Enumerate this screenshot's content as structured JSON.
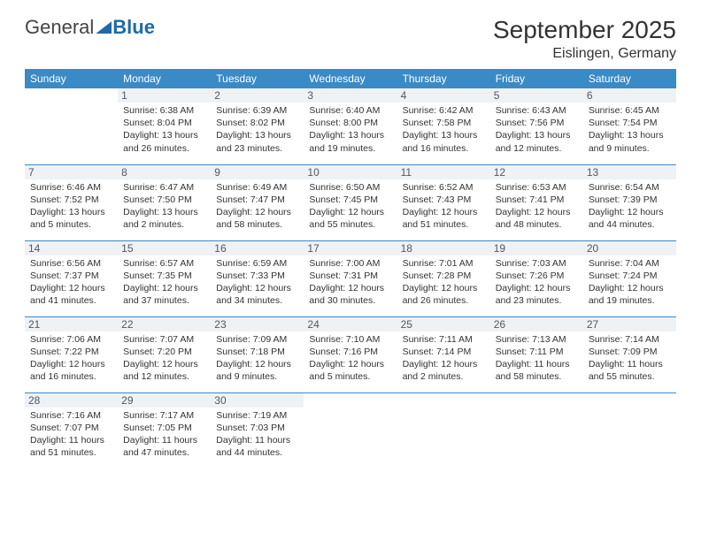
{
  "brand": {
    "part1": "General",
    "part2": "Blue"
  },
  "title": "September 2025",
  "location": "Eislingen, Germany",
  "colors": {
    "header_bg": "#3a8ac6",
    "header_fg": "#ffffff",
    "daynum_bg": "#eef2f5",
    "row_divider": "#3a8ac6",
    "text": "#333333",
    "logo_accent": "#1f6aa5"
  },
  "weekdays": [
    "Sunday",
    "Monday",
    "Tuesday",
    "Wednesday",
    "Thursday",
    "Friday",
    "Saturday"
  ],
  "startWeekday": 1,
  "daysInMonth": 30,
  "days": {
    "1": {
      "sunrise": "6:38 AM",
      "sunset": "8:04 PM",
      "daylight": "13 hours and 26 minutes."
    },
    "2": {
      "sunrise": "6:39 AM",
      "sunset": "8:02 PM",
      "daylight": "13 hours and 23 minutes."
    },
    "3": {
      "sunrise": "6:40 AM",
      "sunset": "8:00 PM",
      "daylight": "13 hours and 19 minutes."
    },
    "4": {
      "sunrise": "6:42 AM",
      "sunset": "7:58 PM",
      "daylight": "13 hours and 16 minutes."
    },
    "5": {
      "sunrise": "6:43 AM",
      "sunset": "7:56 PM",
      "daylight": "13 hours and 12 minutes."
    },
    "6": {
      "sunrise": "6:45 AM",
      "sunset": "7:54 PM",
      "daylight": "13 hours and 9 minutes."
    },
    "7": {
      "sunrise": "6:46 AM",
      "sunset": "7:52 PM",
      "daylight": "13 hours and 5 minutes."
    },
    "8": {
      "sunrise": "6:47 AM",
      "sunset": "7:50 PM",
      "daylight": "13 hours and 2 minutes."
    },
    "9": {
      "sunrise": "6:49 AM",
      "sunset": "7:47 PM",
      "daylight": "12 hours and 58 minutes."
    },
    "10": {
      "sunrise": "6:50 AM",
      "sunset": "7:45 PM",
      "daylight": "12 hours and 55 minutes."
    },
    "11": {
      "sunrise": "6:52 AM",
      "sunset": "7:43 PM",
      "daylight": "12 hours and 51 minutes."
    },
    "12": {
      "sunrise": "6:53 AM",
      "sunset": "7:41 PM",
      "daylight": "12 hours and 48 minutes."
    },
    "13": {
      "sunrise": "6:54 AM",
      "sunset": "7:39 PM",
      "daylight": "12 hours and 44 minutes."
    },
    "14": {
      "sunrise": "6:56 AM",
      "sunset": "7:37 PM",
      "daylight": "12 hours and 41 minutes."
    },
    "15": {
      "sunrise": "6:57 AM",
      "sunset": "7:35 PM",
      "daylight": "12 hours and 37 minutes."
    },
    "16": {
      "sunrise": "6:59 AM",
      "sunset": "7:33 PM",
      "daylight": "12 hours and 34 minutes."
    },
    "17": {
      "sunrise": "7:00 AM",
      "sunset": "7:31 PM",
      "daylight": "12 hours and 30 minutes."
    },
    "18": {
      "sunrise": "7:01 AM",
      "sunset": "7:28 PM",
      "daylight": "12 hours and 26 minutes."
    },
    "19": {
      "sunrise": "7:03 AM",
      "sunset": "7:26 PM",
      "daylight": "12 hours and 23 minutes."
    },
    "20": {
      "sunrise": "7:04 AM",
      "sunset": "7:24 PM",
      "daylight": "12 hours and 19 minutes."
    },
    "21": {
      "sunrise": "7:06 AM",
      "sunset": "7:22 PM",
      "daylight": "12 hours and 16 minutes."
    },
    "22": {
      "sunrise": "7:07 AM",
      "sunset": "7:20 PM",
      "daylight": "12 hours and 12 minutes."
    },
    "23": {
      "sunrise": "7:09 AM",
      "sunset": "7:18 PM",
      "daylight": "12 hours and 9 minutes."
    },
    "24": {
      "sunrise": "7:10 AM",
      "sunset": "7:16 PM",
      "daylight": "12 hours and 5 minutes."
    },
    "25": {
      "sunrise": "7:11 AM",
      "sunset": "7:14 PM",
      "daylight": "12 hours and 2 minutes."
    },
    "26": {
      "sunrise": "7:13 AM",
      "sunset": "7:11 PM",
      "daylight": "11 hours and 58 minutes."
    },
    "27": {
      "sunrise": "7:14 AM",
      "sunset": "7:09 PM",
      "daylight": "11 hours and 55 minutes."
    },
    "28": {
      "sunrise": "7:16 AM",
      "sunset": "7:07 PM",
      "daylight": "11 hours and 51 minutes."
    },
    "29": {
      "sunrise": "7:17 AM",
      "sunset": "7:05 PM",
      "daylight": "11 hours and 47 minutes."
    },
    "30": {
      "sunrise": "7:19 AM",
      "sunset": "7:03 PM",
      "daylight": "11 hours and 44 minutes."
    }
  },
  "labels": {
    "sunrise": "Sunrise:",
    "sunset": "Sunset:",
    "daylight": "Daylight:"
  }
}
